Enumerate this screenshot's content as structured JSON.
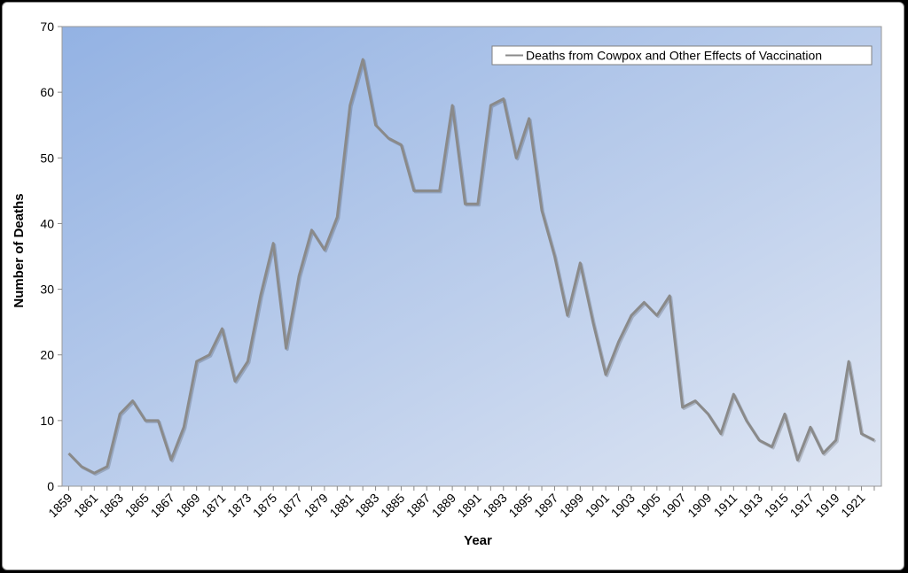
{
  "chart_data": {
    "type": "line",
    "title": "",
    "xlabel": "Year",
    "ylabel": "Number of Deaths",
    "ylim": [
      0,
      70
    ],
    "yticks": [
      0,
      10,
      20,
      30,
      40,
      50,
      60,
      70
    ],
    "grid": false,
    "legend_position": "top-right",
    "x": [
      1859,
      1860,
      1861,
      1862,
      1863,
      1864,
      1865,
      1866,
      1867,
      1868,
      1869,
      1870,
      1871,
      1872,
      1873,
      1874,
      1875,
      1876,
      1877,
      1878,
      1879,
      1880,
      1881,
      1882,
      1883,
      1884,
      1885,
      1886,
      1887,
      1888,
      1889,
      1890,
      1891,
      1892,
      1893,
      1894,
      1895,
      1896,
      1897,
      1898,
      1899,
      1900,
      1901,
      1902,
      1903,
      1904,
      1905,
      1906,
      1907,
      1908,
      1909,
      1910,
      1911,
      1912,
      1913,
      1914,
      1915,
      1916,
      1917,
      1918,
      1919,
      1920,
      1921,
      1922
    ],
    "xtick_labels": [
      "1859",
      "1861",
      "1863",
      "1865",
      "1867",
      "1869",
      "1871",
      "1873",
      "1875",
      "1877",
      "1879",
      "1881",
      "1883",
      "1885",
      "1887",
      "1889",
      "1891",
      "1893",
      "1895",
      "1897",
      "1899",
      "1901",
      "1903",
      "1905",
      "1907",
      "1909",
      "1911",
      "1913",
      "1915",
      "1917",
      "1919",
      "1921"
    ],
    "series": [
      {
        "name": "Deaths from Cowpox and Other Effects of Vaccination",
        "color": "#8a8a8a",
        "values": [
          5,
          3,
          2,
          3,
          11,
          13,
          10,
          10,
          4,
          9,
          19,
          20,
          24,
          16,
          19,
          29,
          37,
          21,
          32,
          39,
          36,
          41,
          58,
          65,
          55,
          53,
          52,
          45,
          45,
          45,
          58,
          43,
          43,
          58,
          59,
          50,
          56,
          42,
          35,
          26,
          34,
          25,
          17,
          22,
          26,
          28,
          26,
          29,
          12,
          13,
          11,
          8,
          14,
          10,
          7,
          6,
          11,
          4,
          9,
          5,
          7,
          19,
          8,
          7
        ]
      }
    ],
    "colors": {
      "plot_bg_start": "#93b2e3",
      "plot_bg_end": "#dfe6f3",
      "line": "#8a8a8a"
    }
  }
}
